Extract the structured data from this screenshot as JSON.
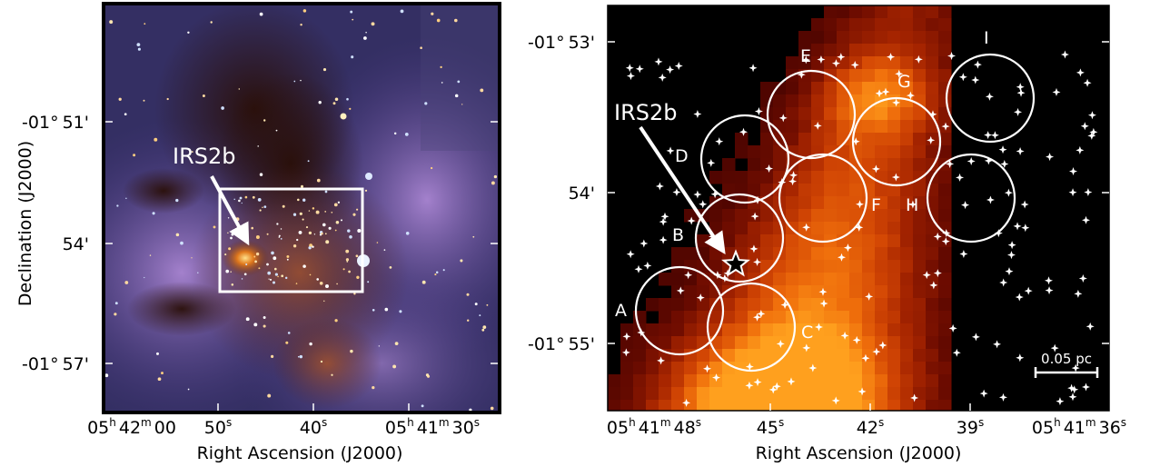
{
  "left_panel": {
    "source_label": "IRS2b",
    "ylabel": "Declination  (J2000)",
    "xlabel": "Right Ascension (J2000)",
    "y_ticks": [
      {
        "deg": "-01°",
        "min": "51'"
      },
      {
        "deg": "",
        "min": "54'"
      },
      {
        "deg": "-01°",
        "min": "57'"
      }
    ],
    "x_ticks": [
      {
        "h": "05",
        "hu": "h",
        "m": "42",
        "mu": "m",
        "s": "00",
        "su": ""
      },
      {
        "s": "50",
        "su": "s"
      },
      {
        "s": "40",
        "su": "s"
      },
      {
        "h": "05",
        "hu": "h",
        "m": "41",
        "mu": "m",
        "s": "30",
        "su": "s"
      }
    ]
  },
  "right_panel": {
    "source_label": "IRS2b",
    "ylabel": "",
    "xlabel": "Right Ascension (J2000)",
    "y_ticks": [
      {
        "deg": "-01°",
        "min": "53'"
      },
      {
        "deg": "",
        "min": "54'"
      },
      {
        "deg": "-01°",
        "min": "55'"
      }
    ],
    "x_ticks": [
      {
        "h": "05",
        "hu": "h",
        "m": "41",
        "mu": "m",
        "s": "48",
        "su": "s"
      },
      {
        "s": "45",
        "su": "s"
      },
      {
        "s": "42",
        "su": "s"
      },
      {
        "s": "39",
        "su": "s"
      },
      {
        "h": "05",
        "hu": "h",
        "m": "41",
        "mu": "m",
        "s": "36",
        "su": "s"
      }
    ],
    "scale_bar_label": "0.05 pc",
    "regions": [
      "A",
      "B",
      "C",
      "D",
      "E",
      "F",
      "G",
      "H",
      "I"
    ],
    "colors": {
      "background": "#000000",
      "markers": "#ffffff",
      "heat_low": "#3a0000",
      "heat_high": "#ffb020"
    }
  }
}
